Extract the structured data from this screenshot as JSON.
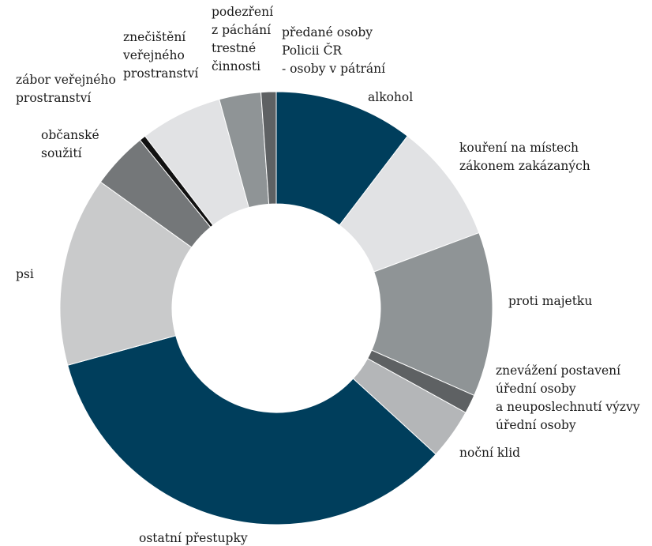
{
  "chart_data": {
    "type": "pie",
    "title": "",
    "donut": true,
    "legend": "none",
    "unit": "%",
    "series": [
      {
        "values": [
          {
            "label": [
              "alkohol"
            ],
            "value": 11.0,
            "color": "#003e5c"
          },
          {
            "label": [
              "kouření na místech",
              "zákonem zakázaných"
            ],
            "value": 9.5,
            "color": "#e1e2e4"
          },
          {
            "label": [
              "proti majetku"
            ],
            "value": 13.0,
            "color": "#8f9496"
          },
          {
            "label": [
              "znevážení postavení",
              "úřední osoby",
              "a neuposlechnutí výzvy",
              "úřední osoby"
            ],
            "value": 1.5,
            "color": "#5e6163"
          },
          {
            "label": [
              "noční klid"
            ],
            "value": 4.0,
            "color": "#b4b6b8"
          },
          {
            "label": [
              "ostatní přestupky"
            ],
            "value": 36.0,
            "color": "#003e5c"
          },
          {
            "label": [
              "psi"
            ],
            "value": 15.0,
            "color": "#c9cacb"
          },
          {
            "label": [
              "občanské",
              "soužití"
            ],
            "value": 4.5,
            "color": "#747779"
          },
          {
            "label": [
              "zábor veřejného",
              "prostranství"
            ],
            "value": 0.5,
            "color": "#111111"
          },
          {
            "label": [
              "znečištění",
              "veřejného",
              "prostranství"
            ],
            "value": 6.5,
            "color": "#e1e2e4"
          },
          {
            "label": [
              "podezření",
              "z páchání",
              "trestné",
              "činnosti"
            ],
            "value": 3.3,
            "color": "#8f9496"
          },
          {
            "label": [
              "předané osoby",
              "Policii ČR",
              "- osoby v pátrání"
            ],
            "value": 1.2,
            "color": "#5e6163"
          }
        ]
      }
    ]
  }
}
